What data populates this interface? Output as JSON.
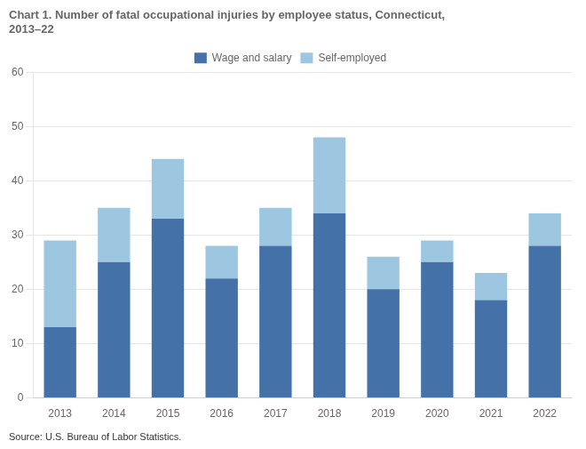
{
  "chart_data": {
    "type": "bar",
    "title": [
      "Chart 1. Number of fatal occupational injuries by employee status, Connecticut,",
      "2013–22"
    ],
    "annotations": [
      "Source: U.S. Bureau of Labor Statistics."
    ],
    "categories": [
      "2013",
      "2014",
      "2015",
      "2016",
      "2017",
      "2018",
      "2019",
      "2020",
      "2021",
      "2022"
    ],
    "series": [
      {
        "name": "Wage and salary",
        "color": "#4472a8",
        "values": [
          13,
          25,
          33,
          22,
          28,
          34,
          20,
          25,
          18,
          28
        ]
      },
      {
        "name": "Self-employed",
        "color": "#9dc6e0",
        "values": [
          16,
          10,
          11,
          6,
          7,
          14,
          6,
          4,
          5,
          6
        ]
      }
    ],
    "ylim": [
      0,
      60
    ],
    "yticks": [
      0,
      10,
      20,
      30,
      40,
      50,
      60
    ],
    "stacked": true,
    "grid": true,
    "legend": "top"
  }
}
